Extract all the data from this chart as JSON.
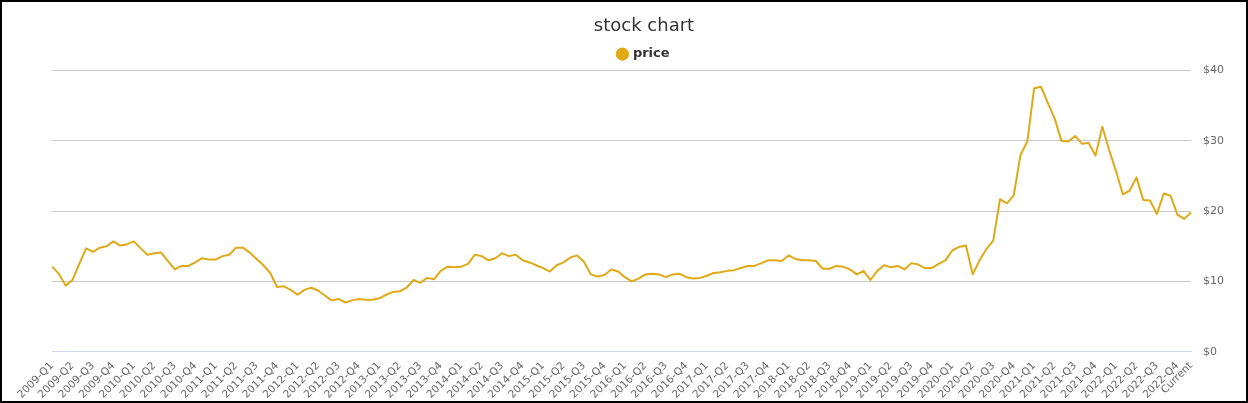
{
  "chart_data": {
    "type": "line",
    "title": "stock chart",
    "categories": [
      "2009-Q1",
      null,
      null,
      "2009-Q2",
      null,
      null,
      "2009-Q3",
      null,
      null,
      "2009-Q4",
      null,
      null,
      "2010-Q1",
      null,
      null,
      "2010-Q2",
      null,
      null,
      "2010-Q3",
      null,
      null,
      "2010-Q4",
      null,
      null,
      "2011-Q1",
      null,
      null,
      "2011-Q2",
      null,
      null,
      "2011-Q3",
      null,
      null,
      "2011-Q4",
      null,
      null,
      "2012-Q1",
      null,
      null,
      "2012-Q2",
      null,
      null,
      "2012-Q3",
      null,
      null,
      "2012-Q4",
      null,
      null,
      "2013-Q1",
      null,
      null,
      "2013-Q2",
      null,
      null,
      "2013-Q3",
      null,
      null,
      "2013-Q4",
      null,
      null,
      "2014-Q1",
      null,
      null,
      "2014-Q2",
      null,
      null,
      "2014-Q3",
      null,
      null,
      "2014-Q4",
      null,
      null,
      "2015-Q1",
      null,
      null,
      "2015-Q2",
      null,
      null,
      "2015-Q3",
      null,
      null,
      "2015-Q4",
      null,
      null,
      "2016-Q1",
      null,
      null,
      "2016-Q2",
      null,
      null,
      "2016-Q3",
      null,
      null,
      "2016-Q4",
      null,
      null,
      "2017-Q1",
      null,
      null,
      "2017-Q2",
      null,
      null,
      "2017-Q3",
      null,
      null,
      "2017-Q4",
      null,
      null,
      "2018-Q1",
      null,
      null,
      "2018-Q2",
      null,
      null,
      "2018-Q3",
      null,
      null,
      "2018-Q4",
      null,
      null,
      "2019-Q1",
      null,
      null,
      "2019-Q2",
      null,
      null,
      "2019-Q3",
      null,
      null,
      "2019-Q4",
      null,
      null,
      "2020-Q1",
      null,
      null,
      "2020-Q2",
      null,
      null,
      "2020-Q3",
      null,
      null,
      "2020-Q4",
      null,
      null,
      "2021-Q1",
      null,
      null,
      "2021-Q2",
      null,
      null,
      "2021-Q3",
      null,
      null,
      "2021-Q4",
      null,
      null,
      "2022-Q1",
      null,
      null,
      "2022-Q2",
      null,
      null,
      "2022-Q3",
      null,
      null,
      "2022-Q4",
      null,
      "Current"
    ],
    "series": [
      {
        "name": "price",
        "color": "#e0a918",
        "values": [
          12.1,
          11.1,
          9.4,
          10.2,
          12.5,
          14.7,
          14.2,
          14.8,
          15.0,
          15.7,
          15.1,
          15.3,
          15.7,
          14.7,
          13.8,
          14.0,
          14.1,
          12.9,
          11.7,
          12.2,
          12.2,
          12.7,
          13.3,
          13.1,
          13.1,
          13.6,
          13.8,
          14.8,
          14.8,
          14.1,
          13.2,
          12.3,
          11.2,
          9.2,
          9.3,
          8.8,
          8.1,
          8.8,
          9.1,
          8.7,
          8.0,
          7.3,
          7.5,
          7.0,
          7.3,
          7.5,
          7.4,
          7.4,
          7.6,
          8.1,
          8.5,
          8.6,
          9.1,
          10.2,
          9.8,
          10.5,
          10.3,
          11.5,
          12.1,
          12.0,
          12.1,
          12.5,
          13.8,
          13.6,
          13.0,
          13.3,
          14.0,
          13.6,
          13.8,
          13.0,
          12.7,
          12.3,
          11.9,
          11.4,
          12.3,
          12.7,
          13.4,
          13.7,
          12.8,
          11.0,
          10.7,
          10.9,
          11.7,
          11.4,
          10.6,
          10.0,
          10.4,
          11.0,
          11.1,
          11.0,
          10.6,
          11.0,
          11.1,
          10.6,
          10.4,
          10.5,
          10.8,
          11.2,
          11.3,
          11.5,
          11.6,
          11.9,
          12.2,
          12.2,
          12.6,
          13.0,
          13.0,
          12.9,
          13.7,
          13.2,
          13.0,
          13.0,
          12.9,
          11.8,
          11.8,
          12.2,
          12.1,
          11.7,
          11.0,
          11.5,
          10.2,
          11.5,
          12.3,
          12.0,
          12.2,
          11.7,
          12.6,
          12.4,
          11.9,
          11.9,
          12.5,
          13.0,
          14.4,
          14.9,
          15.1,
          11.0,
          13.0,
          14.6,
          15.8,
          21.7,
          21.1,
          22.2,
          28.0,
          29.9,
          37.5,
          37.7,
          35.4,
          33.2,
          30.0,
          29.9,
          30.7,
          29.6,
          29.7,
          27.9,
          32.0,
          28.7,
          25.7,
          22.4,
          22.9,
          24.8,
          21.6,
          21.5,
          19.6,
          22.5,
          22.2,
          19.5,
          18.9,
          19.8
        ]
      }
    ],
    "ylim": [
      0,
      40
    ],
    "yticks": [
      {
        "value": 0,
        "label": "$0"
      },
      {
        "value": 10,
        "label": "$10"
      },
      {
        "value": 20,
        "label": "$20"
      },
      {
        "value": 30,
        "label": "$30"
      },
      {
        "value": 40,
        "label": "$40"
      }
    ],
    "grid": "y",
    "legend": "top",
    "marker": "none",
    "line_style": "solid"
  }
}
